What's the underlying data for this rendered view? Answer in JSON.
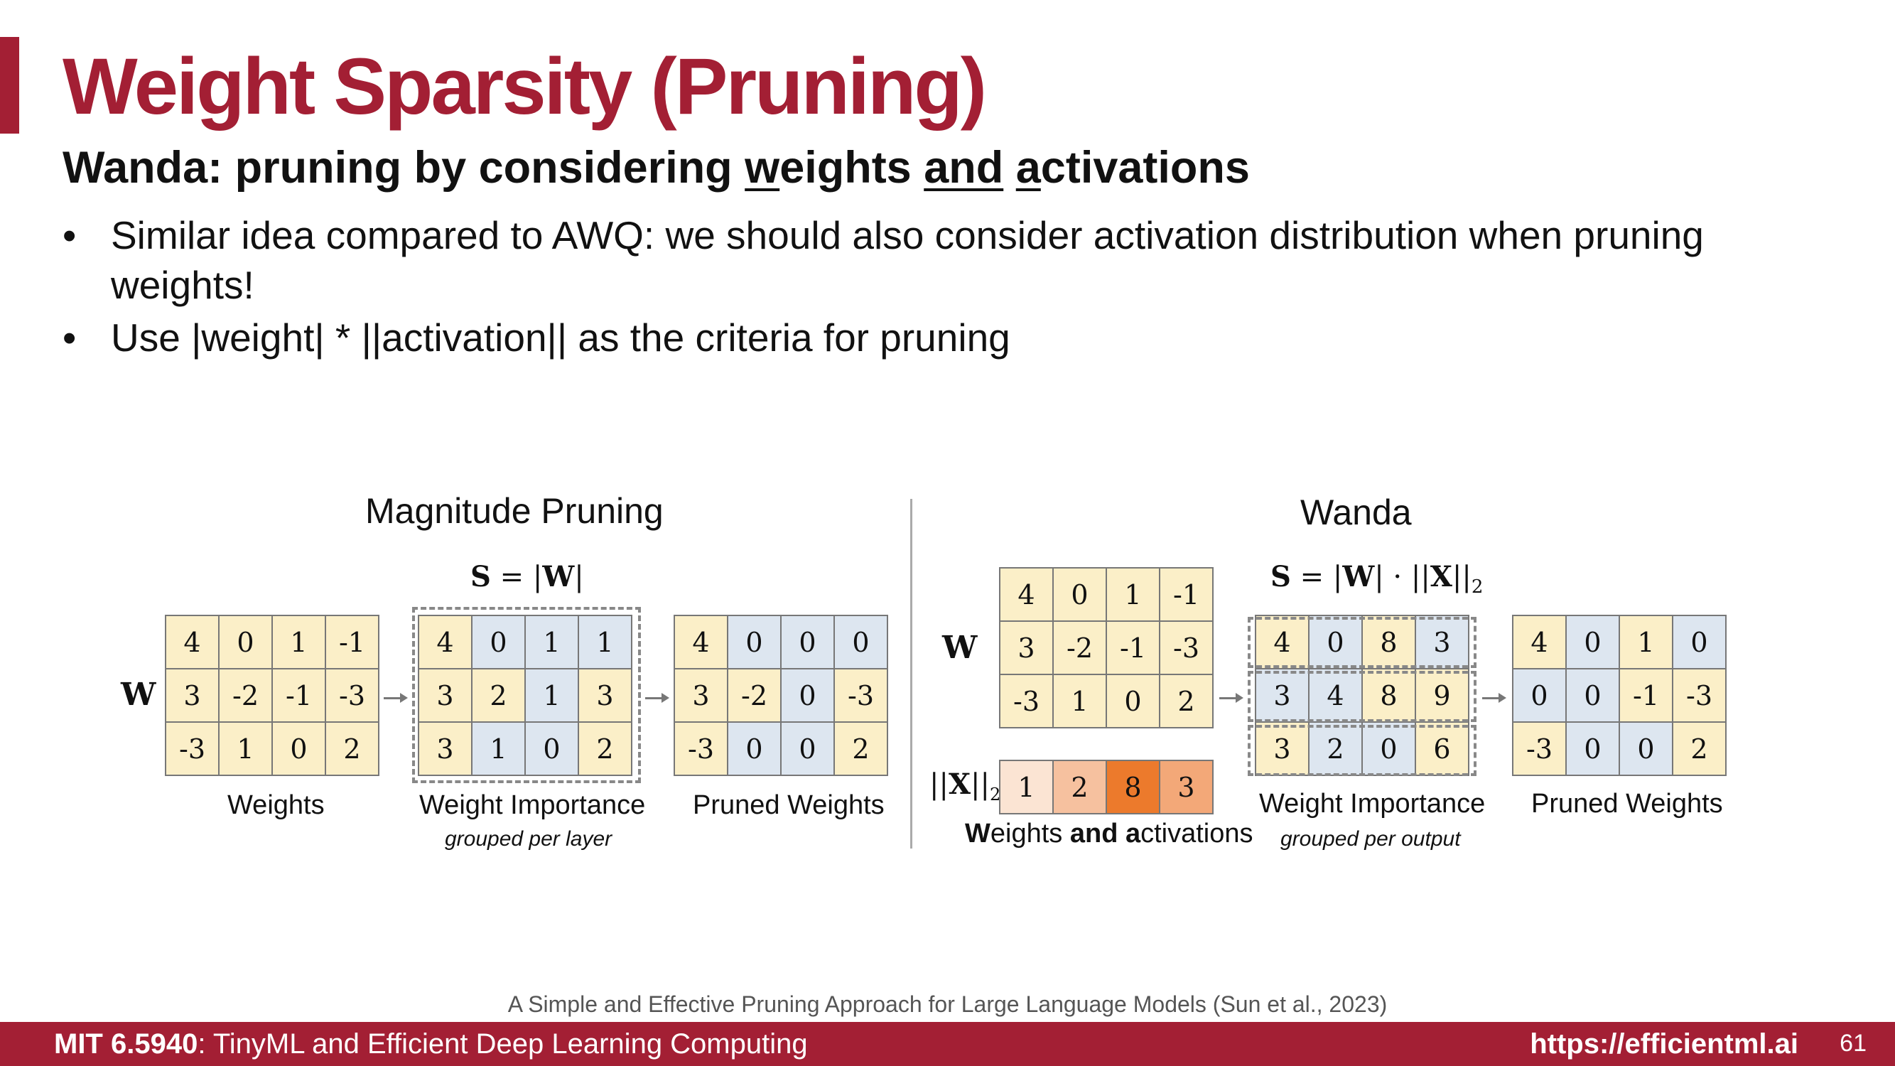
{
  "slide": {
    "title": "Weight Sparsity (Pruning)",
    "subtitle": {
      "part1": "Wanda: pruning by considering ",
      "w_underlined": "w",
      "part2": "eights ",
      "and_underlined": "and",
      "part3": " ",
      "a_underlined": "a",
      "part4": "ctivations"
    },
    "bullets": [
      "Similar idea compared to AWQ: we should also consider activation distribution when pruning weights!",
      "Use |weight| * ||activation|| as the criteria for pruning"
    ],
    "bullet_symbol": "•"
  },
  "figure": {
    "magnitude": {
      "heading": "Magnitude Pruning",
      "formula": {
        "lhs": "S",
        "eq": " = |",
        "w": "W",
        "end": "|"
      },
      "w_label": "W",
      "weights": [
        [
          "4",
          "0",
          "1",
          "-1"
        ],
        [
          "3",
          "-2",
          "-1",
          "-3"
        ],
        [
          "-3",
          "1",
          "0",
          "2"
        ]
      ],
      "importance": [
        [
          "4",
          "0",
          "1",
          "1"
        ],
        [
          "3",
          "2",
          "1",
          "3"
        ],
        [
          "3",
          "1",
          "0",
          "2"
        ]
      ],
      "pruned": [
        [
          "4",
          "0",
          "0",
          "0"
        ],
        [
          "3",
          "-2",
          "0",
          "-3"
        ],
        [
          "-3",
          "0",
          "0",
          "2"
        ]
      ],
      "weights_caption": "Weights",
      "importance_caption": "Weight Importance",
      "importance_note": "grouped per layer",
      "pruned_caption": "Pruned Weights"
    },
    "wanda": {
      "heading": "Wanda",
      "formula": {
        "lhs": "S",
        "mid": " = |",
        "w": "W",
        "mid2": "| · ||",
        "x": "X",
        "end": "||",
        "sub": "2"
      },
      "w_label": "W",
      "x_label": {
        "open": "||",
        "x": "X",
        "close": "||",
        "sub": "2"
      },
      "weights": [
        [
          "4",
          "0",
          "1",
          "-1"
        ],
        [
          "3",
          "-2",
          "-1",
          "-3"
        ],
        [
          "-3",
          "1",
          "0",
          "2"
        ]
      ],
      "activations": [
        "1",
        "2",
        "8",
        "3"
      ],
      "importance": [
        [
          "4",
          "0",
          "8",
          "3"
        ],
        [
          "3",
          "4",
          "8",
          "9"
        ],
        [
          "3",
          "2",
          "0",
          "6"
        ]
      ],
      "pruned": [
        [
          "4",
          "0",
          "1",
          "0"
        ],
        [
          "0",
          "0",
          "-1",
          "-3"
        ],
        [
          "-3",
          "0",
          "0",
          "2"
        ]
      ],
      "wa_caption": {
        "p1": "W",
        "p2": "eights ",
        "p3": "and",
        "p4": " ",
        "p5": "a",
        "p6": "ctivations"
      },
      "importance_caption": "Weight Importance",
      "importance_note": "grouped per output",
      "pruned_caption": "Pruned Weights"
    }
  },
  "citation": "A Simple and Effective Pruning Approach for Large Language Models (Sun et al., 2023)",
  "footer": {
    "course_code": "MIT 6.5940",
    "course_name": ": TinyML and Efficient Deep Learning Computing",
    "url": "https://efficientml.ai",
    "page": "61"
  },
  "colors": {
    "accent": "#a31f34",
    "cell_yellow": "#fbefc8",
    "cell_blue": "#dde6f0",
    "activation_scale": [
      "#fbe4d3",
      "#f6c19f",
      "#ec7a2c",
      "#f3a878"
    ]
  }
}
